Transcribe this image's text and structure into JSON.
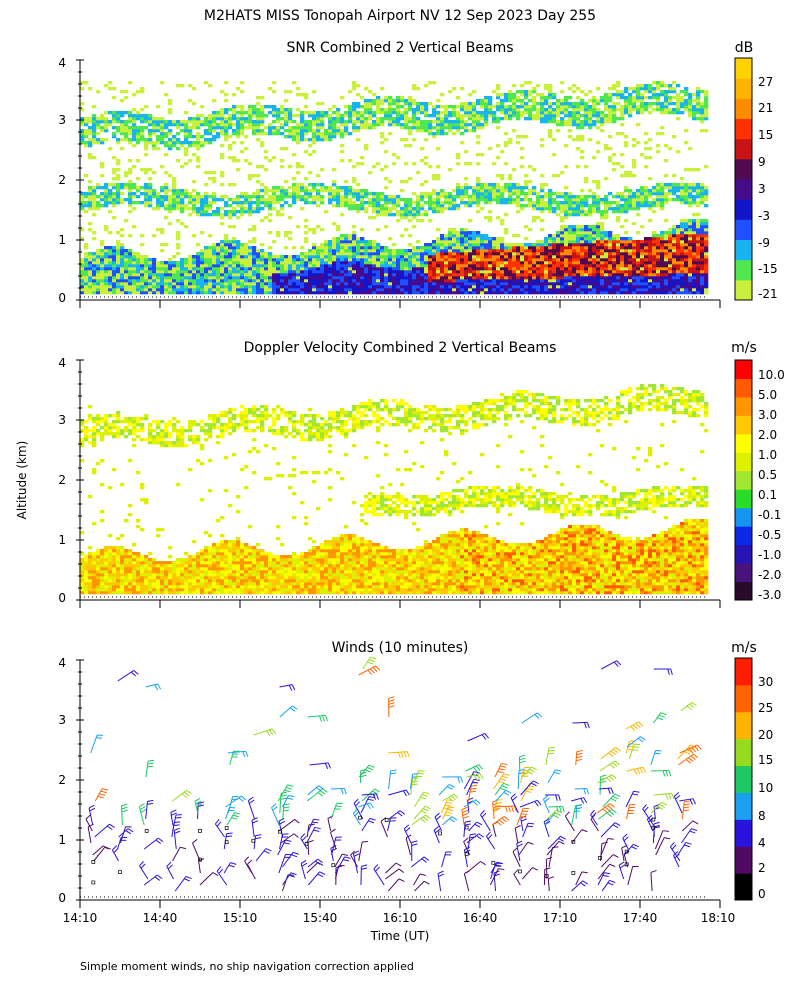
{
  "title": "M2HATS MISS Tonopah Airport NV  12 Sep 2023 Day 255",
  "ylabel": "Altitude (km)",
  "xlabel": "Time (UT)",
  "footnote": "Simple moment winds, no ship navigation correction applied",
  "chart_data": [
    {
      "type": "heatmap",
      "title": "SNR Combined 2 Vertical Beams",
      "units": "dB",
      "xlim": [
        0,
        240
      ],
      "ylim": [
        0,
        4
      ],
      "yticks": [
        "0",
        "1",
        "2",
        "3",
        "4"
      ],
      "colorbar_labels": [
        "-21",
        "-15",
        "-9",
        "-3",
        "3",
        "9",
        "15",
        "21",
        "27"
      ],
      "colorbar_colors": [
        "#c8f03c",
        "#50e650",
        "#19b4f0",
        "#1e50ff",
        "#1414c8",
        "#460a8c",
        "#500a50",
        "#c81414",
        "#ff3200",
        "#ff8c00",
        "#ffb400",
        "#ffd200"
      ]
    },
    {
      "type": "heatmap",
      "title": "Doppler Velocity Combined 2 Vertical Beams",
      "units": "m/s",
      "xlim": [
        0,
        240
      ],
      "ylim": [
        0,
        4
      ],
      "yticks": [
        "0",
        "1",
        "2",
        "3",
        "4"
      ],
      "colorbar_labels": [
        "10.0",
        "5.0",
        "3.0",
        "2.0",
        "1.0",
        "0.5",
        "0.1",
        "-0.1",
        "-0.5",
        "-1.0",
        "-2.0",
        "-3.0"
      ],
      "colorbar_colors": [
        "#2a0a2a",
        "#46147a",
        "#2814b4",
        "#0a28e6",
        "#1496f0",
        "#28dc28",
        "#a0e632",
        "#dcf000",
        "#ffff00",
        "#ffc800",
        "#ff9600",
        "#ff5a00",
        "#ff0000"
      ]
    },
    {
      "type": "scatter",
      "title": "Winds (10 minutes)",
      "units": "m/s",
      "xlim": [
        0,
        240
      ],
      "ylim": [
        0,
        4
      ],
      "yticks": [
        "0",
        "1",
        "2",
        "3",
        "4"
      ],
      "colorbar_labels": [
        "0",
        "2",
        "4",
        "8",
        "10",
        "15",
        "20",
        "25",
        "30"
      ],
      "colorbar_colors": [
        "#000000",
        "#500a64",
        "#2814dc",
        "#19a0f0",
        "#1ec864",
        "#96dc1e",
        "#ffb400",
        "#ff6400",
        "#ff1e00"
      ],
      "x_tick_labels": [
        "14:10",
        "14:40",
        "15:10",
        "15:40",
        "16:10",
        "16:40",
        "17:10",
        "17:40",
        "18:10"
      ]
    }
  ]
}
